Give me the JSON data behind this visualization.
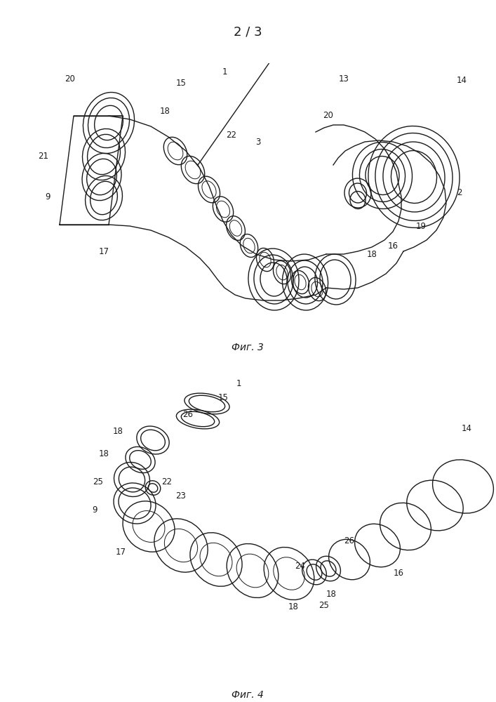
{
  "page_number": "2 / 3",
  "fig3_caption": "Фиг. 3",
  "fig4_caption": "Фиг. 4",
  "background_color": "#ffffff",
  "line_color": "#1a1a1a"
}
